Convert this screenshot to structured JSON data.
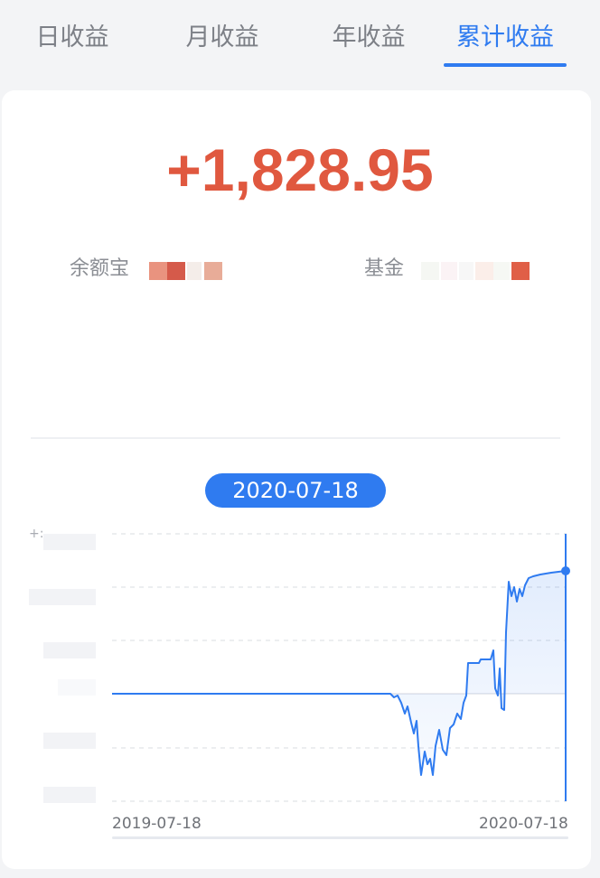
{
  "tabs": [
    {
      "label": "日收益",
      "active": false
    },
    {
      "label": "月收益",
      "active": false
    },
    {
      "label": "年收益",
      "active": false
    },
    {
      "label": "累计收益",
      "active": true
    }
  ],
  "summary": {
    "total": "+1,828.95",
    "yuebao_label": "余额宝",
    "fund_label": "基金"
  },
  "chart": {
    "selected_date": "2020-07-18",
    "x_start_label": "2019-07-18",
    "x_end_label": "2020-07-18",
    "y_hint": "+:"
  },
  "colors": {
    "accent": "#2f7bf0",
    "gain": "#e0583f",
    "tab_inactive": "#7d8087"
  },
  "chart_data": {
    "type": "area",
    "x_start": "2019-07-18",
    "x_end": "2020-07-18",
    "description_points": [
      [
        "2019-07-18",
        0
      ],
      [
        "2020-01-22",
        0
      ],
      [
        "2020-02-01",
        -1
      ],
      [
        "2020-02-10",
        -2
      ],
      [
        "2020-02-20",
        -3
      ],
      [
        "2020-03-01",
        -2.2
      ],
      [
        "2020-03-08",
        -1
      ],
      [
        "2020-03-15",
        0.6
      ],
      [
        "2020-04-10",
        0.7
      ],
      [
        "2020-04-12",
        -0.3
      ],
      [
        "2020-04-15",
        2.5
      ],
      [
        "2020-04-20",
        2.0
      ],
      [
        "2020-05-10",
        2.2
      ],
      [
        "2020-07-18",
        2.3
      ]
    ],
    "grid": true
  }
}
